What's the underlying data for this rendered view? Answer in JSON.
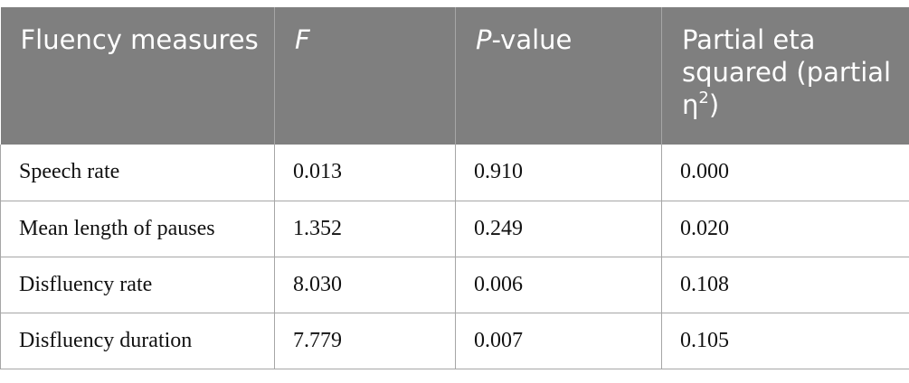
{
  "table": {
    "header": [
      {
        "parts": [
          "Fluency measures"
        ]
      },
      {
        "parts": [
          "F"
        ]
      },
      {
        "parts": [
          "P",
          "-value"
        ]
      },
      {
        "parts": [
          "Partial eta squared (partial η",
          "2",
          ")"
        ]
      }
    ],
    "rows": [
      [
        "Speech rate",
        "0.013",
        "0.910",
        "0.000"
      ],
      [
        "Mean length of pauses",
        "1.352",
        "0.249",
        "0.020"
      ],
      [
        "Disfluency rate",
        "8.030",
        "0.006",
        "0.108"
      ],
      [
        "Disfluency duration",
        "7.779",
        "0.007",
        "0.105"
      ]
    ]
  }
}
